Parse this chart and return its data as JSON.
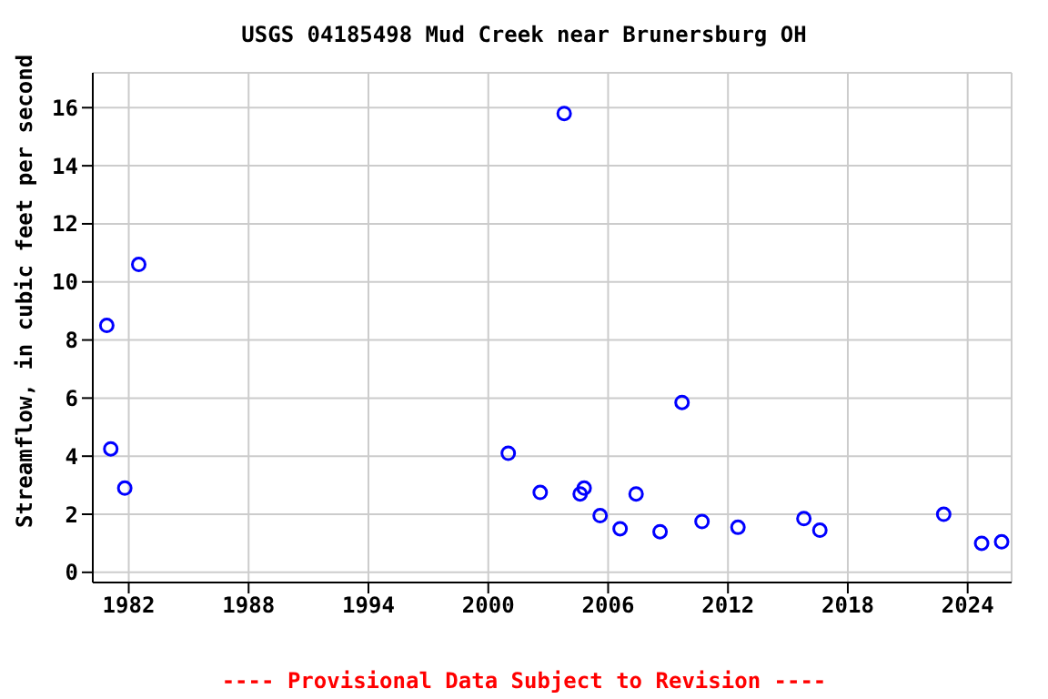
{
  "chart_data": {
    "type": "scatter",
    "title": "USGS 04185498 Mud Creek near Brunersburg OH",
    "ylabel": "Streamflow, in cubic feet per second",
    "annotations": [
      "---- Provisional Data Subject to Revision ----"
    ],
    "series": [
      {
        "color": "#0000ff",
        "x": [
          1980.9,
          1981.1,
          1981.8,
          1982.5,
          2001.0,
          2002.6,
          2003.8,
          2004.6,
          2004.8,
          2005.6,
          2006.6,
          2007.4,
          2008.6,
          2009.7,
          2010.7,
          2012.5,
          2015.8,
          2016.6,
          2022.8,
          2024.7,
          2025.7
        ],
        "values": [
          8.5,
          4.25,
          2.9,
          10.6,
          4.1,
          2.75,
          15.8,
          2.7,
          2.9,
          1.95,
          1.5,
          2.7,
          1.4,
          5.85,
          1.75,
          1.55,
          1.85,
          1.45,
          2.0,
          1.0,
          1.05
        ]
      }
    ],
    "xlim": [
      1980.2,
      2026.2
    ],
    "xticks": [
      1982,
      1988,
      1994,
      2000,
      2006,
      2012,
      2018,
      2024
    ],
    "ylim": [
      -0.35,
      17.2
    ],
    "yticks": [
      0,
      2,
      4,
      6,
      8,
      10,
      12,
      14,
      16
    ],
    "grid": true,
    "marker": "circle",
    "legend": false
  }
}
